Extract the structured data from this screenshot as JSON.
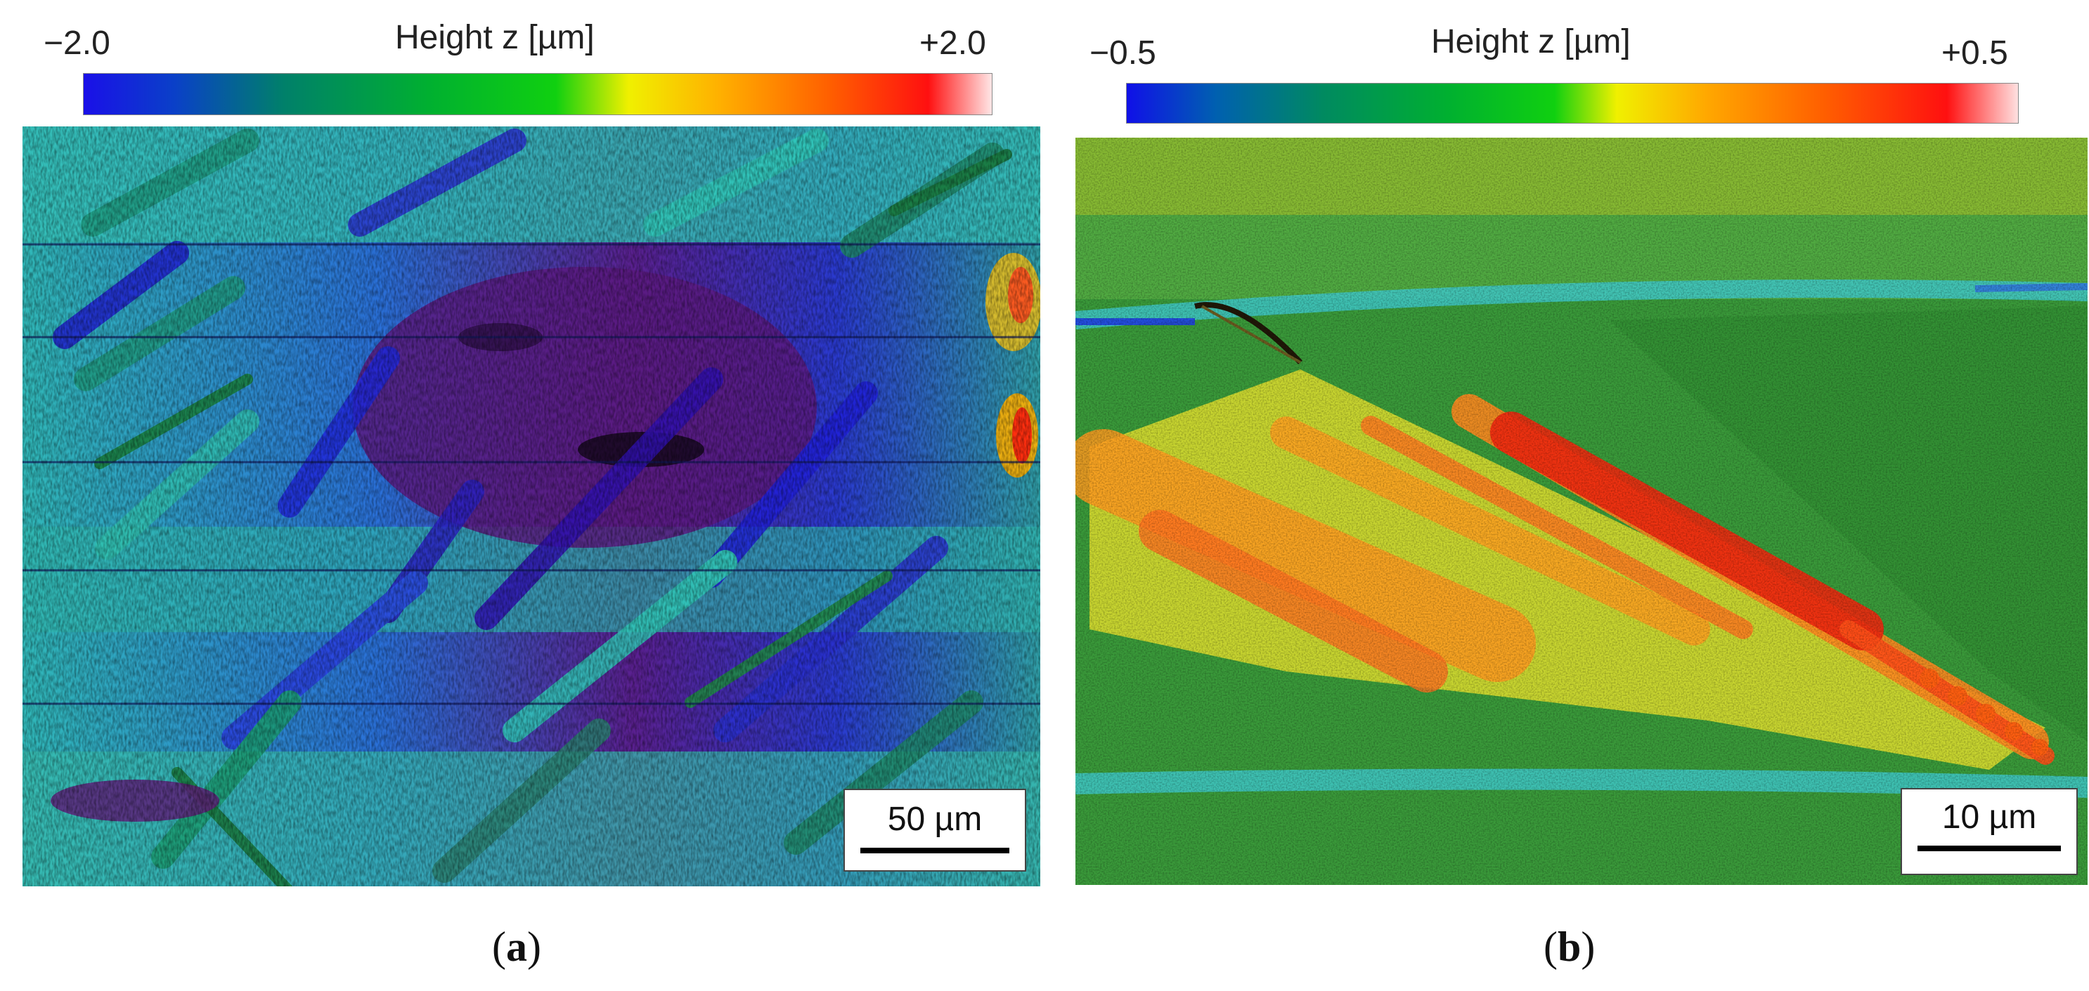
{
  "panels": [
    {
      "id": "a",
      "colorbar": {
        "title": "Height z [µm]",
        "min_label": "−2.0",
        "max_label": "+2.0",
        "min": -2.0,
        "max": 2.0
      },
      "scale_bar": {
        "label": "50 µm"
      },
      "caption_open": "(",
      "caption_letter": "a",
      "caption_close": ")"
    },
    {
      "id": "b",
      "colorbar": {
        "title": "Height z [µm]",
        "min_label": "−0.5",
        "max_label": "+0.5",
        "min": -0.5,
        "max": 0.5
      },
      "scale_bar": {
        "label": "10 µm"
      },
      "caption_open": "(",
      "caption_letter": "b",
      "caption_close": ")"
    }
  ],
  "colors": {
    "colormap": [
      "#1010e0",
      "#00a050",
      "#00d000",
      "#e8e800",
      "#ff8c00",
      "#ff1010",
      "#ffe0e0"
    ],
    "panel_a_base": "#2fb8b0",
    "panel_a_low": "#2020d0",
    "panel_a_deep": "#601878",
    "panel_b_base": "#3a9a3a",
    "panel_b_mid": "#d8dc30",
    "panel_b_high": "#f04020",
    "panel_b_groove": "#40c8c8"
  }
}
